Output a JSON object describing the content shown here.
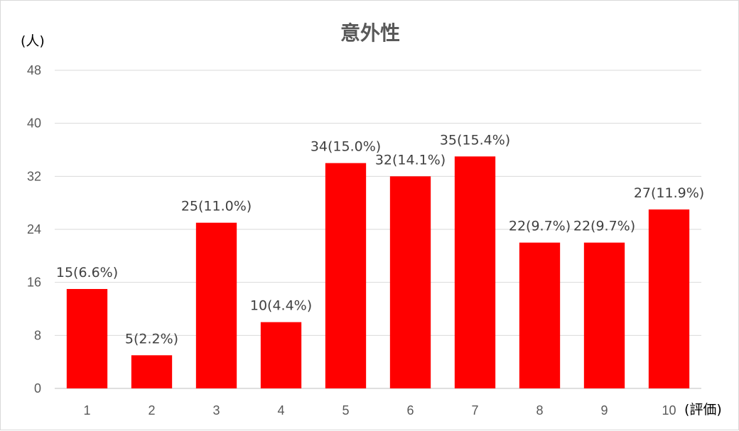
{
  "chart_data": {
    "type": "bar",
    "title": "意外性",
    "ylabel": "(人)",
    "xlabel": "(評価)",
    "categories": [
      "1",
      "2",
      "3",
      "4",
      "5",
      "6",
      "7",
      "8",
      "9",
      "10"
    ],
    "values": [
      15,
      5,
      25,
      10,
      34,
      32,
      35,
      22,
      22,
      27
    ],
    "data_labels": [
      "15(6.6%)",
      "5(2.2%)",
      "25(11.0%)",
      "10(4.4%)",
      "34(15.0%)",
      "32(14.1%)",
      "35(15.4%)",
      "22(9.7%)",
      "22(9.7%)",
      "27(11.9%)"
    ],
    "ylim": [
      0,
      48
    ],
    "yticks": [
      0,
      8,
      16,
      24,
      32,
      40,
      48
    ],
    "grid": true,
    "legend": "none",
    "bar_color": "#ff0000"
  }
}
